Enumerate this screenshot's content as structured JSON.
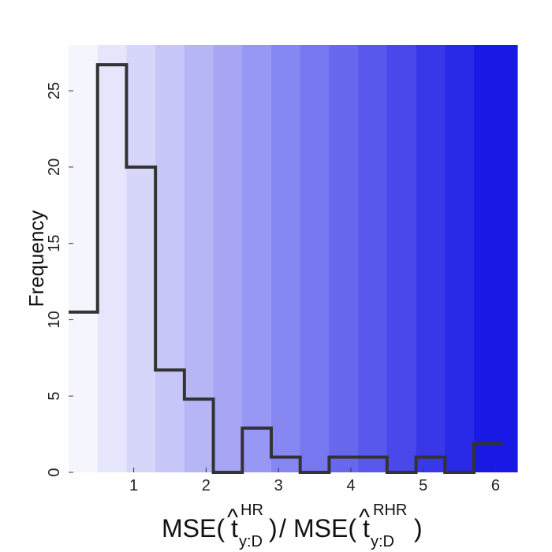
{
  "chart_data": {
    "type": "bar",
    "ylabel": "Frequency",
    "xlabel_parts": {
      "left_func": "MSE(",
      "left_var": "t",
      "left_hat": "^",
      "left_sup": "HR",
      "left_sub": "y:D",
      "separator": "/",
      "right_func": "MSE(",
      "right_var": "t",
      "right_hat": "^",
      "right_sup": "RHR",
      "right_sub": "y:D",
      "close": ")"
    },
    "bin_edges": [
      0.1,
      0.5,
      0.9,
      1.3,
      1.7,
      2.1,
      2.5,
      2.9,
      3.3,
      3.7,
      4.1,
      4.5,
      4.9,
      5.3,
      5.7,
      6.1
    ],
    "values": [
      10.5,
      26.7,
      20,
      6.7,
      4.8,
      0,
      2.9,
      1,
      0,
      1,
      1,
      0,
      1,
      0,
      1.9
    ],
    "xlim": [
      0.1,
      6.3
    ],
    "ylim": [
      0,
      28
    ],
    "xticks": [
      1,
      2,
      3,
      4,
      5,
      6
    ],
    "yticks": [
      0,
      5,
      10,
      15,
      20,
      25
    ],
    "background_gradient": {
      "from": "#f5f5fe",
      "to": "#1919e6",
      "bands": 15
    },
    "line_color": "#333333",
    "grid": false
  }
}
